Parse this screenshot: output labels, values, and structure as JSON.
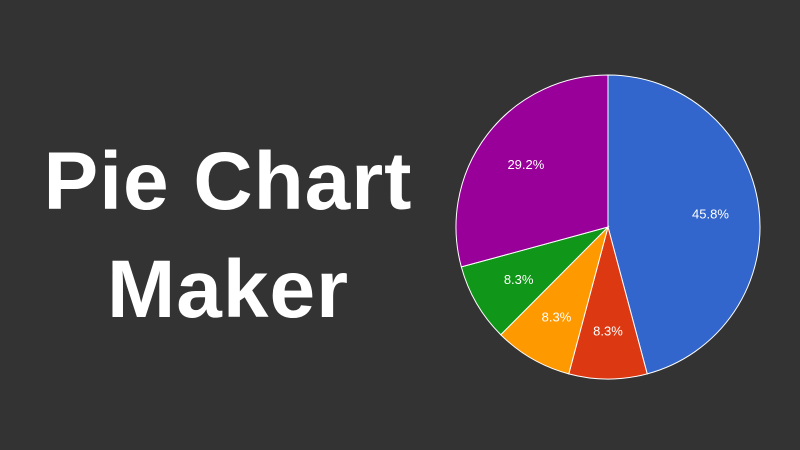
{
  "title": {
    "line1": "Pie Chart",
    "line2": "Maker"
  },
  "chart_data": {
    "type": "pie",
    "start": "top, clockwise",
    "slices": [
      {
        "label": "45.8%",
        "value": 45.8,
        "color": "#3366cc"
      },
      {
        "label": "8.3%",
        "value": 8.3,
        "color": "#dc3912"
      },
      {
        "label": "8.3%",
        "value": 8.3,
        "color": "#ff9900"
      },
      {
        "label": "8.3%",
        "value": 8.3,
        "color": "#109618"
      },
      {
        "label": "29.2%",
        "value": 29.2,
        "color": "#990099"
      }
    ],
    "legend": "none"
  },
  "colors": {
    "background": "#333333",
    "text": "#ffffff",
    "slice_border": "#ffffff"
  }
}
